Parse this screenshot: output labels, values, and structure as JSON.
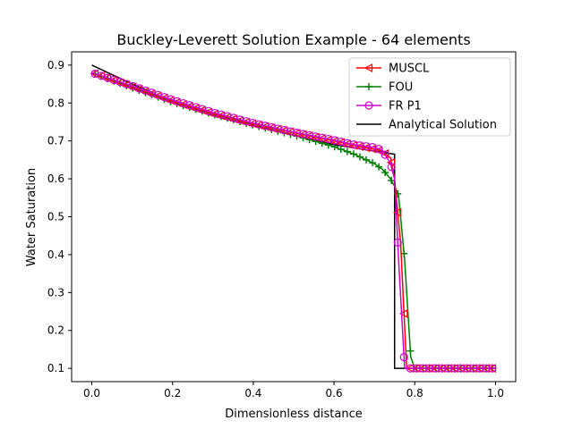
{
  "chart_data": {
    "type": "line",
    "title": "Buckley-Leverett Solution Example - 64 elements",
    "xlabel": "Dimensionless distance",
    "ylabel": "Water Saturation",
    "xlim": [
      -0.05,
      1.05
    ],
    "ylim": [
      0.065,
      0.935
    ],
    "xticks": [
      0.0,
      0.2,
      0.4,
      0.6,
      0.8,
      1.0
    ],
    "xtick_labels": [
      "0.0",
      "0.2",
      "0.4",
      "0.6",
      "0.8",
      "1.0"
    ],
    "yticks": [
      0.1,
      0.2,
      0.3,
      0.4,
      0.5,
      0.6,
      0.7,
      0.8,
      0.9
    ],
    "ytick_labels": [
      "0.1",
      "0.2",
      "0.3",
      "0.4",
      "0.5",
      "0.6",
      "0.7",
      "0.8",
      "0.9"
    ],
    "grid": false,
    "legend_position": "top-right",
    "series": [
      {
        "name": "MUSCL",
        "color": "#ff0000",
        "marker": "triangle-left",
        "x": [
          0.0,
          0.1,
          0.2,
          0.3,
          0.4,
          0.5,
          0.6,
          0.65,
          0.7,
          0.72,
          0.74,
          0.75,
          0.765,
          0.78,
          0.8,
          1.0
        ],
        "y": [
          0.88,
          0.843,
          0.805,
          0.772,
          0.745,
          0.722,
          0.7,
          0.688,
          0.678,
          0.672,
          0.655,
          0.6,
          0.43,
          0.1,
          0.1,
          0.1
        ]
      },
      {
        "name": "FOU",
        "color": "#008000",
        "marker": "plus",
        "x": [
          0.0,
          0.1,
          0.2,
          0.3,
          0.4,
          0.5,
          0.55,
          0.6,
          0.65,
          0.7,
          0.72,
          0.74,
          0.75,
          0.76,
          0.775,
          0.79,
          0.8,
          1.0
        ],
        "y": [
          0.88,
          0.84,
          0.802,
          0.77,
          0.742,
          0.715,
          0.7,
          0.685,
          0.665,
          0.64,
          0.625,
          0.6,
          0.58,
          0.555,
          0.385,
          0.13,
          0.1,
          0.1
        ]
      },
      {
        "name": "FR P1",
        "color": "#cc00cc",
        "marker": "circle",
        "x": [
          0.0,
          0.1,
          0.2,
          0.3,
          0.4,
          0.5,
          0.6,
          0.65,
          0.7,
          0.72,
          0.74,
          0.75,
          0.76,
          0.775,
          0.8,
          1.0
        ],
        "y": [
          0.88,
          0.845,
          0.808,
          0.775,
          0.747,
          0.723,
          0.702,
          0.69,
          0.683,
          0.675,
          0.64,
          0.6,
          0.385,
          0.1,
          0.1,
          0.1
        ]
      },
      {
        "name": "Analytical Solution",
        "color": "#000000",
        "marker": "none",
        "x": [
          0.0,
          0.1,
          0.2,
          0.3,
          0.4,
          0.5,
          0.6,
          0.7,
          0.75,
          0.75,
          1.0
        ],
        "y": [
          0.9,
          0.85,
          0.805,
          0.768,
          0.74,
          0.715,
          0.69,
          0.673,
          0.665,
          0.1,
          0.1
        ]
      }
    ]
  }
}
